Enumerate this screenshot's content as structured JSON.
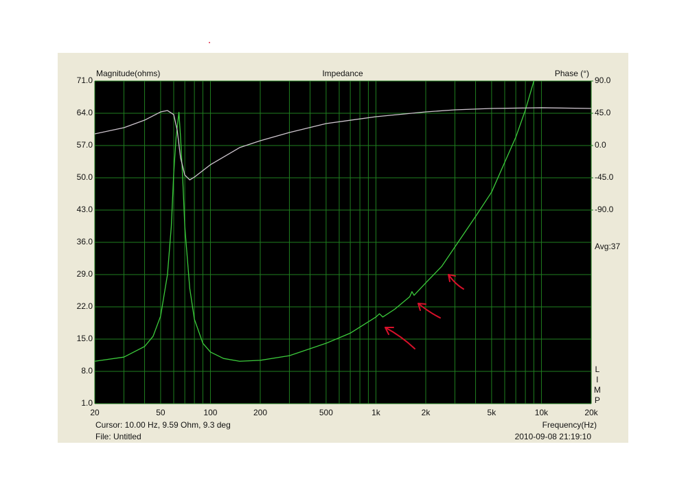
{
  "chart_data": {
    "type": "line",
    "title": "Impedance",
    "ylabel": "Magnitude(ohms)",
    "y2label": "Phase (°)",
    "xlabel": "Frequency(Hz)",
    "log_x": true,
    "grid": true,
    "xlim": [
      20,
      20000
    ],
    "xticks": [
      20,
      50,
      100,
      200,
      500,
      {
        "value": 1000,
        "label": "1k"
      },
      {
        "value": 2000,
        "label": "2k"
      },
      {
        "value": 5000,
        "label": "5k"
      },
      {
        "value": 10000,
        "label": "10k"
      },
      {
        "value": 20000,
        "label": "20k"
      }
    ],
    "xgrid": [
      30,
      40,
      60,
      70,
      80,
      90,
      300,
      400,
      600,
      700,
      800,
      900,
      3000,
      4000,
      6000,
      7000,
      8000,
      9000
    ],
    "ylim": [
      1,
      71
    ],
    "yticks": [
      {
        "value": 1,
        "label": "1.0"
      },
      {
        "value": 8,
        "label": "8.0"
      },
      {
        "value": 15,
        "label": "15.0"
      },
      {
        "value": 22,
        "label": "22.0"
      },
      {
        "value": 29,
        "label": "29.0"
      },
      {
        "value": 36,
        "label": "36.0"
      },
      {
        "value": 43,
        "label": "43.0"
      },
      {
        "value": 50,
        "label": "50.0"
      },
      {
        "value": 57,
        "label": "57.0"
      },
      {
        "value": 64,
        "label": "64.0"
      },
      {
        "value": 71,
        "label": "71.0"
      }
    ],
    "y2lim": [
      -360,
      90
    ],
    "y2ticks": [
      {
        "value": 90,
        "label": "90.0"
      },
      {
        "value": 45,
        "label": "45.0"
      },
      {
        "value": 0,
        "label": "0.0"
      },
      {
        "value": -45,
        "label": "-45.0"
      },
      {
        "value": -90,
        "label": "-90.0"
      }
    ],
    "series": [
      {
        "color": "#3ccc3c",
        "x": [
          20,
          30,
          40,
          45,
          50,
          55,
          58,
          60,
          62,
          64.5,
          66,
          68,
          70,
          75,
          80,
          90,
          100,
          120,
          150,
          200,
          300,
          500,
          700,
          1000,
          1050,
          1100,
          1300,
          1600,
          1650,
          1700,
          2000,
          2500,
          3000,
          4000,
          5000,
          7000,
          8000,
          9000
        ],
        "values": [
          10.2,
          11.1,
          13.4,
          15.6,
          20,
          29,
          39.4,
          51,
          58.8,
          64.2,
          58.8,
          49.8,
          39.4,
          26,
          19.3,
          14.1,
          12.2,
          10.8,
          10.2,
          10.4,
          11.4,
          14.1,
          16.3,
          19.8,
          20.5,
          19.8,
          21.5,
          24.2,
          25.3,
          24.5,
          27.2,
          30.8,
          35,
          41.6,
          46.9,
          58.8,
          64.7,
          71
        ]
      },
      {
        "color": "#cfc6cf",
        "axis": "y2",
        "x": [
          20,
          30,
          40,
          50,
          55,
          60,
          63,
          66,
          70,
          75,
          80,
          100,
          150,
          200,
          300,
          500,
          1000,
          2000,
          3000,
          5000,
          10000,
          20000
        ],
        "values": [
          16.3,
          24.9,
          35.4,
          46.9,
          48.8,
          43.1,
          21.1,
          -17.2,
          -41.2,
          -47.9,
          -44,
          -26.8,
          -2.9,
          6.7,
          18.2,
          30.6,
          40.2,
          46.9,
          49.8,
          51.7,
          52.7,
          51.7
        ]
      }
    ],
    "annotations": [
      "Avg:37",
      "LIMP"
    ],
    "status": {
      "cursor": "Cursor: 10.00 Hz, 9.59 Ohm, 9.3 deg",
      "file": "File: Untitled",
      "timestamp": "2010-09-08 21:19:10"
    }
  }
}
